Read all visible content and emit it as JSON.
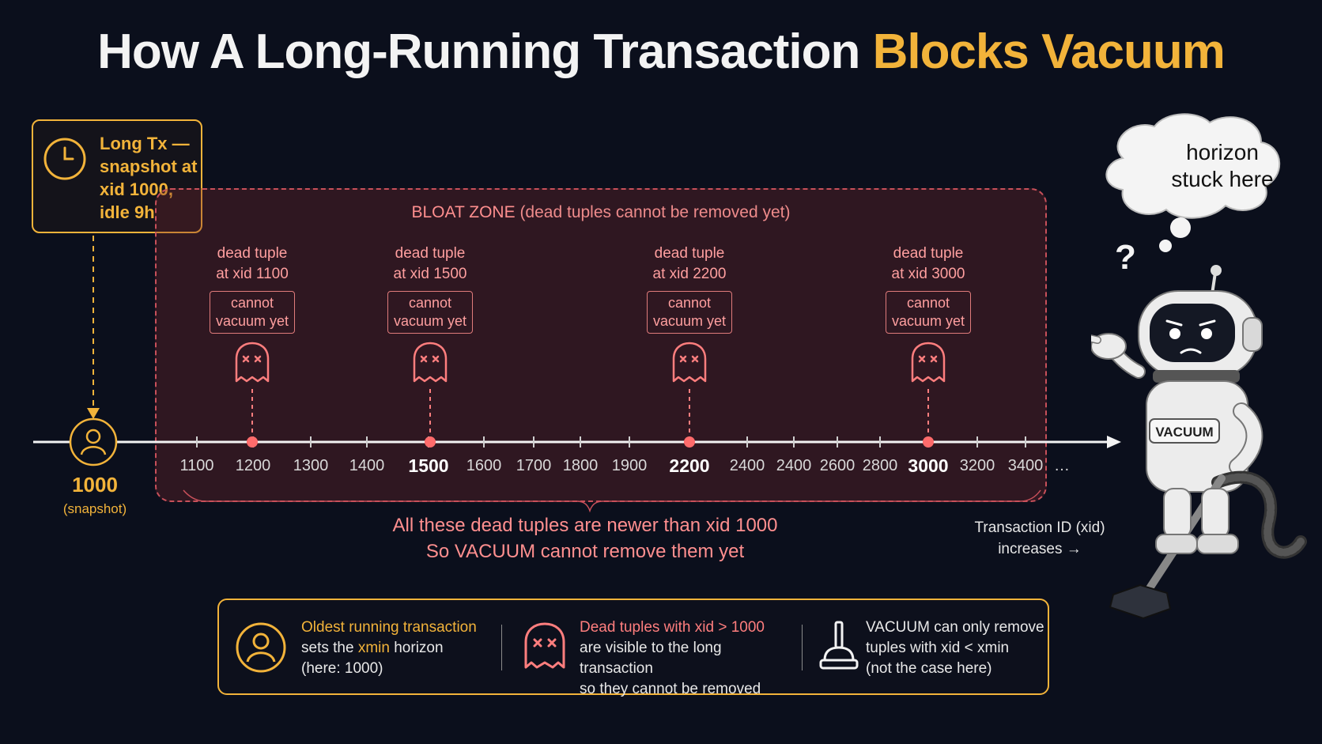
{
  "title": {
    "part1": "How A Long-Running Transaction ",
    "part2": "Blocks Vacuum"
  },
  "long_tx": {
    "label": "Long Tx — snapshot at xid 1000, idle 9h"
  },
  "bloat_zone": {
    "title": "BLOAT ZONE",
    "note": "(dead tuples cannot be removed yet)"
  },
  "dead_tuples": [
    {
      "label1": "dead tuple",
      "label2": "at xid 1100",
      "status1": "cannot",
      "status2": "vacuum yet"
    },
    {
      "label1": "dead tuple",
      "label2": "at xid 1500",
      "status1": "cannot",
      "status2": "vacuum yet"
    },
    {
      "label1": "dead tuple",
      "label2": "at xid 2200",
      "status1": "cannot",
      "status2": "vacuum yet"
    },
    {
      "label1": "dead tuple",
      "label2": "at xid 3000",
      "status1": "cannot",
      "status2": "vacuum yet"
    }
  ],
  "axis": {
    "ticks": [
      "1100",
      "1200",
      "1300",
      "1400",
      "1500",
      "1600",
      "1700",
      "1800",
      "1900",
      "2200",
      "2400",
      "2400",
      "2600",
      "2800",
      "3000",
      "3200",
      "3400"
    ],
    "bold_ticks": [
      "1500",
      "2200",
      "3000"
    ],
    "ellipsis": "…",
    "snapshot_value": "1000",
    "snapshot_label": "(snapshot)",
    "label_line1": "Transaction ID (xid)",
    "label_line2": "increases →"
  },
  "message": {
    "line1": "All these dead tuples are newer than xid 1000",
    "line2": "So VACUUM cannot remove them yet"
  },
  "legend": {
    "item1": {
      "line1": "Oldest running transaction",
      "line2a": "sets the ",
      "line2b": "xmin",
      "line2c": " horizon",
      "line3": "(here: 1000)"
    },
    "item2": {
      "line1": "Dead tuples with xid > 1000",
      "line2": "are visible to the long transaction",
      "line3": "so they cannot be removed"
    },
    "item3": {
      "line1": "VACUUM can only remove",
      "line2": "tuples with xid < xmin",
      "line3": "(not the case here)"
    }
  },
  "robot": {
    "thought_line1": "horizon",
    "thought_line2": "stuck here",
    "badge": "VACUUM",
    "question": "?"
  },
  "colors": {
    "background": "#0b0f1c",
    "accent": "#f2b33a",
    "danger": "#ff8f8f",
    "text": "#f3f3f3"
  }
}
